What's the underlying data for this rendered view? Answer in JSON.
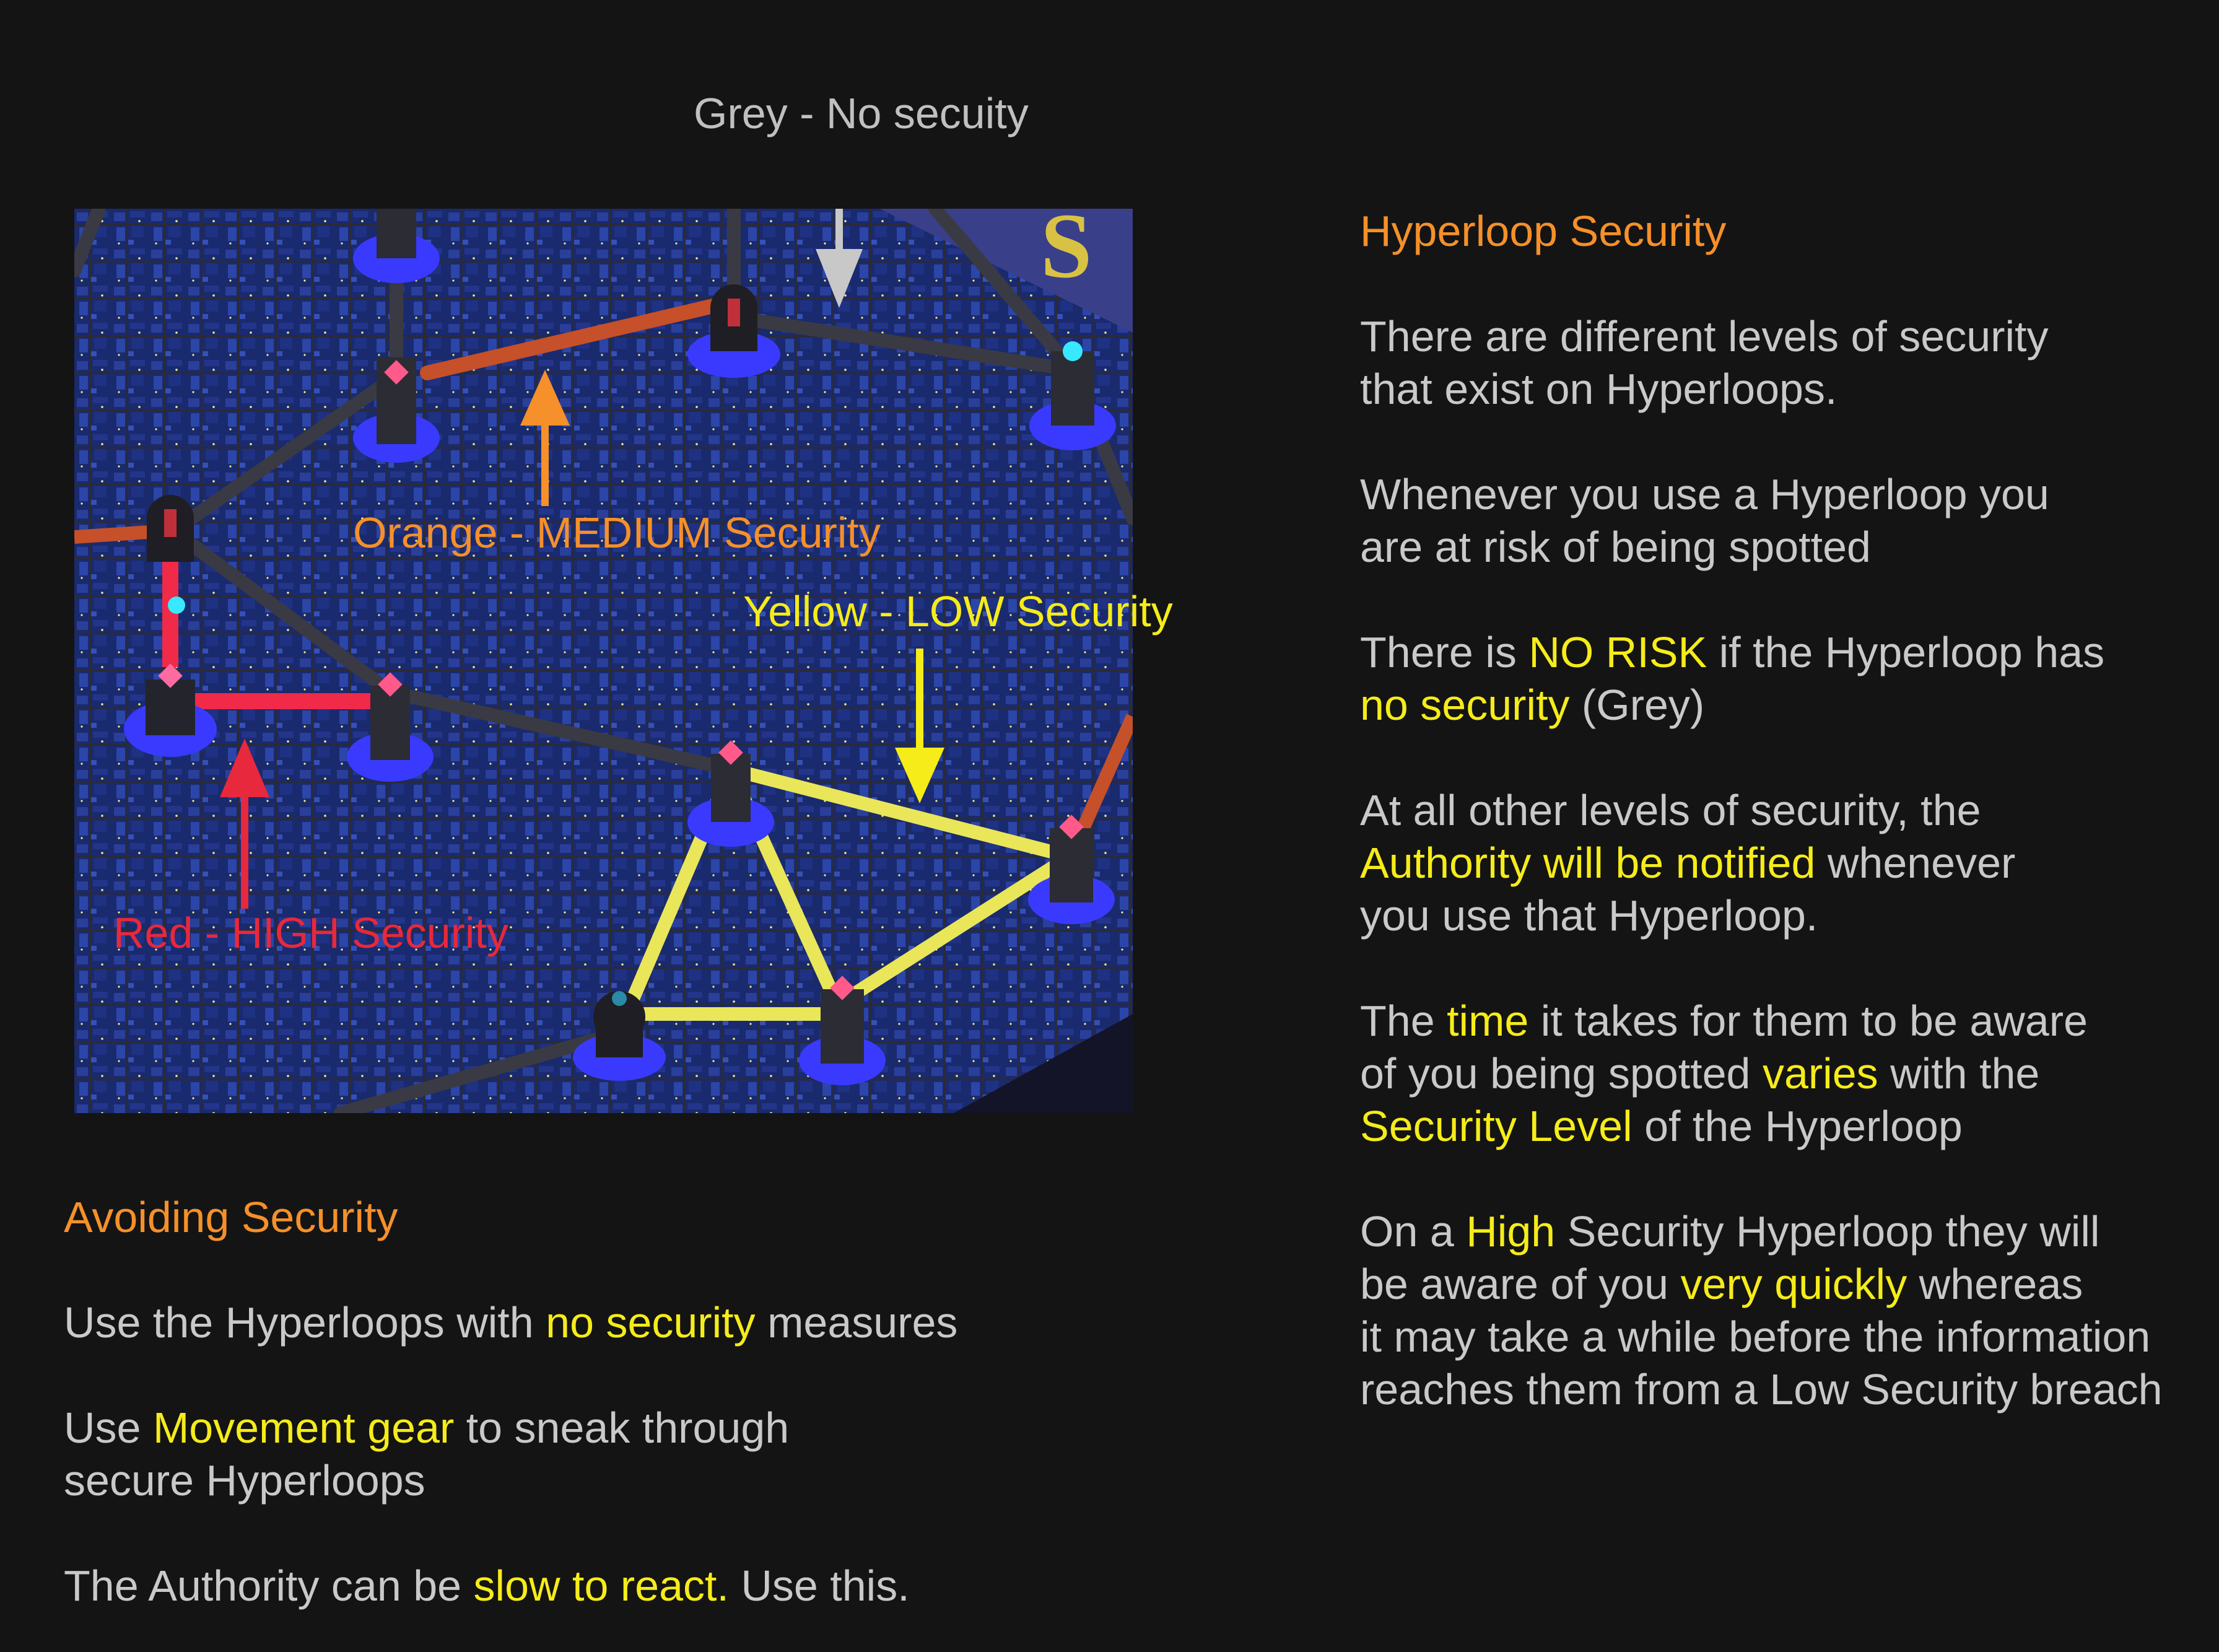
{
  "map_labels": {
    "grey": "Grey - No secuity",
    "orange": "Orange - MEDIUM Security",
    "yellow": "Yellow - LOW Security",
    "red": "Red - HIGH Security"
  },
  "colors": {
    "background": "#141414",
    "body_text": "#c9c9c9",
    "highlight": "#f5ec1a",
    "heading": "#f5902a",
    "grey_line": "#c0c0c0",
    "orange_line": "#f5902a",
    "yellow_line": "#f5ec1a",
    "red_line": "#e8283c"
  },
  "right_panel": {
    "heading": "Hyperloop Security",
    "p1": [
      "There are different levels of security",
      "that exist on Hyperloops."
    ],
    "p2": [
      "Whenever you  use a Hyperloop you",
      "are at risk of being spotted"
    ],
    "p3": {
      "l1_a": "There is ",
      "l1_b": "NO RISK",
      "l1_c": " if the Hyperloop has",
      "l2_a": "no security",
      "l2_b": " (Grey)"
    },
    "p4": {
      "l1": "At  all other levels of security, the",
      "l2_a": "Authority will be notified",
      "l2_b": " whenever",
      "l3": "you use that Hyperloop."
    },
    "p5": {
      "l1_a": "The ",
      "l1_b": "time",
      "l1_c": " it takes for them to be aware",
      "l2_a": "of you being spotted ",
      "l2_b": "varies",
      "l2_c": " with the",
      "l3_a": "Security Level",
      "l3_b": " of the Hyperloop"
    },
    "p6": {
      "l1_a": "On a ",
      "l1_b": "High",
      "l1_c": " Security Hyperloop they will",
      "l2_a": "be aware of you ",
      "l2_b": "very quickly",
      "l2_c": " whereas",
      "l3": "it may take a while before the information",
      "l4": "reaches them from a Low Security breach"
    }
  },
  "left_panel": {
    "heading": "Avoiding Security",
    "p1": {
      "a": "Use the Hyperloops with ",
      "b": "no security",
      "c": " measures"
    },
    "p2": {
      "l1_a": "Use ",
      "l1_b": "Movement gear",
      "l1_c": " to sneak through",
      "l2": "secure Hyperloops"
    },
    "p3": {
      "a": "The Authority can be ",
      "b": "slow to react.",
      "c": " Use this."
    }
  }
}
